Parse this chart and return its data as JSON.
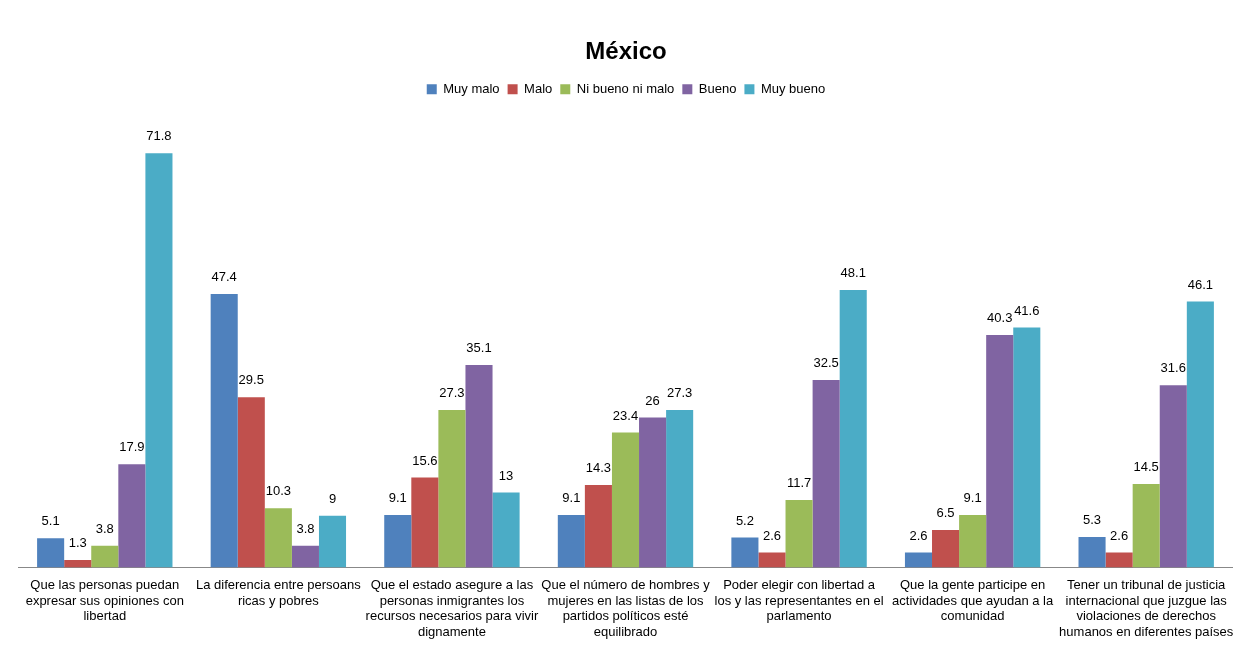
{
  "chart_data": {
    "type": "bar",
    "title": "México",
    "categories": [
      "Que las personas puedan expresar sus opiniones con libertad",
      "La diferencia entre persoans ricas y pobres",
      "Que el estado asegure a las personas inmigrantes los recursos necesarios para vivir dignamente",
      "Que el número de hombres y mujeres en las listas de los partidos políticos esté equilibrado",
      "Poder elegir con libertad a los y las representantes en el parlamento",
      "Que la gente participe en actividades que ayudan a la comunidad",
      "Tener un tribunal de justicia internacional que juzgue las violaciones de derechos humanos en diferentes países"
    ],
    "series": [
      {
        "name": "Muy malo",
        "color": "#4f81bd",
        "values": [
          5.1,
          47.4,
          9.1,
          9.1,
          5.2,
          2.6,
          5.3
        ]
      },
      {
        "name": "Malo",
        "color": "#c0504d",
        "values": [
          1.3,
          29.5,
          15.6,
          14.3,
          2.6,
          6.5,
          2.6
        ]
      },
      {
        "name": "Ni bueno ni malo",
        "color": "#9bbb59",
        "values": [
          3.8,
          10.3,
          27.3,
          23.4,
          11.7,
          9.1,
          14.5
        ]
      },
      {
        "name": "Bueno",
        "color": "#8064a2",
        "values": [
          17.9,
          3.8,
          35.1,
          26,
          32.5,
          40.3,
          31.6
        ]
      },
      {
        "name": "Muy bueno",
        "color": "#4bacc6",
        "values": [
          71.8,
          9,
          13,
          27.3,
          48.1,
          41.6,
          46.1
        ]
      }
    ],
    "data_labels": true,
    "legend": "top",
    "grid": false
  }
}
